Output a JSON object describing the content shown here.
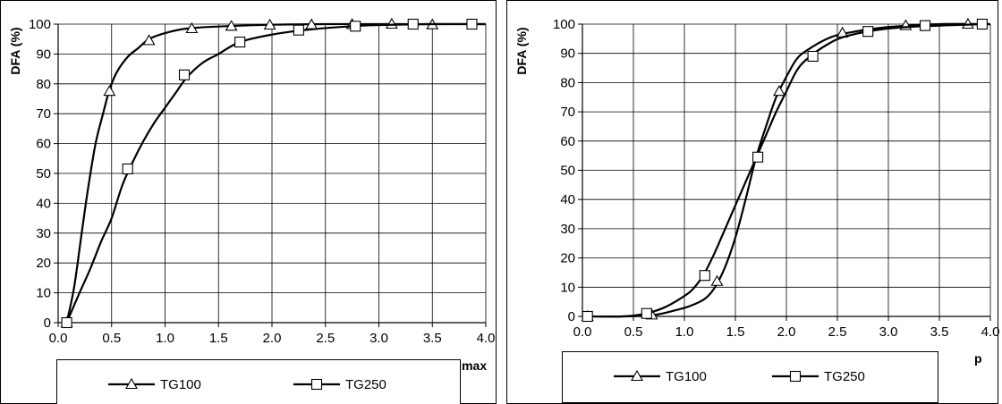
{
  "chart_data": [
    {
      "type": "line",
      "title": "",
      "xlabel": "Hmax",
      "ylabel": "DFA (%)",
      "xlim": [
        0,
        4.0
      ],
      "ylim": [
        0,
        100
      ],
      "x_ticks": [
        "0.0",
        "0.5",
        "1.0",
        "1.5",
        "2.0",
        "2.5",
        "3.0",
        "3.5",
        "4.0"
      ],
      "y_ticks": [
        "0",
        "10",
        "20",
        "30",
        "40",
        "50",
        "60",
        "70",
        "80",
        "90",
        "100"
      ],
      "grid": true,
      "legend_position": "bottom",
      "series": [
        {
          "name": "TG100",
          "marker": "triangle",
          "curve": [
            [
              0.08,
              0
            ],
            [
              0.15,
              12
            ],
            [
              0.22,
              30
            ],
            [
              0.28,
              45
            ],
            [
              0.35,
              60
            ],
            [
              0.42,
              70
            ],
            [
              0.48,
              78
            ],
            [
              0.55,
              84
            ],
            [
              0.65,
              89
            ],
            [
              0.75,
              92
            ],
            [
              0.85,
              95
            ],
            [
              1.0,
              97
            ],
            [
              1.2,
              98.5
            ],
            [
              1.5,
              99.2
            ],
            [
              2.0,
              99.8
            ],
            [
              2.5,
              100
            ],
            [
              3.0,
              100
            ],
            [
              4.0,
              100
            ]
          ],
          "markers": [
            [
              0.08,
              0
            ],
            [
              0.48,
              77.5
            ],
            [
              0.85,
              94.5
            ],
            [
              1.25,
              98.5
            ],
            [
              1.62,
              99.3
            ],
            [
              1.98,
              99.7
            ],
            [
              2.37,
              99.8
            ],
            [
              2.75,
              99.9
            ],
            [
              3.12,
              100
            ],
            [
              3.5,
              99.8
            ]
          ]
        },
        {
          "name": "TG250",
          "marker": "square",
          "curve": [
            [
              0.08,
              0
            ],
            [
              0.2,
              10
            ],
            [
              0.3,
              18
            ],
            [
              0.4,
              27
            ],
            [
              0.5,
              35
            ],
            [
              0.6,
              46
            ],
            [
              0.7,
              54
            ],
            [
              0.8,
              61
            ],
            [
              0.9,
              67
            ],
            [
              1.0,
              72
            ],
            [
              1.1,
              77
            ],
            [
              1.2,
              82
            ],
            [
              1.35,
              87
            ],
            [
              1.5,
              90
            ],
            [
              1.7,
              94
            ],
            [
              2.0,
              96.5
            ],
            [
              2.3,
              98
            ],
            [
              2.7,
              99.2
            ],
            [
              3.0,
              99.7
            ],
            [
              3.5,
              100
            ],
            [
              4.0,
              100
            ]
          ],
          "markers": [
            [
              0.08,
              0
            ],
            [
              0.65,
              51.5
            ],
            [
              1.18,
              83
            ],
            [
              1.7,
              94
            ],
            [
              2.25,
              98
            ],
            [
              2.78,
              99.3
            ],
            [
              3.32,
              100
            ],
            [
              3.87,
              100
            ]
          ]
        }
      ]
    },
    {
      "type": "line",
      "title": "",
      "xlabel": "p",
      "ylabel": "DFA (%)",
      "xlim": [
        0,
        4.0
      ],
      "ylim": [
        0,
        100
      ],
      "x_ticks": [
        "0.0",
        "0.5",
        "1.0",
        "1.5",
        "2.0",
        "2.5",
        "3.0",
        "3.5",
        "4.0"
      ],
      "y_ticks": [
        "0",
        "10",
        "20",
        "30",
        "40",
        "50",
        "60",
        "70",
        "80",
        "90",
        "100"
      ],
      "grid": true,
      "legend_position": "bottom",
      "series": [
        {
          "name": "TG100",
          "marker": "triangle",
          "curve": [
            [
              0.05,
              0
            ],
            [
              0.4,
              0
            ],
            [
              0.7,
              0.5
            ],
            [
              0.9,
              2
            ],
            [
              1.05,
              3.5
            ],
            [
              1.2,
              6
            ],
            [
              1.3,
              10
            ],
            [
              1.4,
              17
            ],
            [
              1.5,
              27
            ],
            [
              1.6,
              40
            ],
            [
              1.7,
              54
            ],
            [
              1.8,
              65
            ],
            [
              1.9,
              75
            ],
            [
              2.0,
              82
            ],
            [
              2.1,
              88
            ],
            [
              2.2,
              91
            ],
            [
              2.4,
              95
            ],
            [
              2.6,
              97
            ],
            [
              3.0,
              99
            ],
            [
              3.5,
              100
            ],
            [
              4.0,
              100
            ]
          ],
          "markers": [
            [
              0.05,
              0
            ],
            [
              0.68,
              0.5
            ],
            [
              1.32,
              12
            ],
            [
              1.93,
              77
            ],
            [
              2.55,
              97
            ],
            [
              3.17,
              99.5
            ],
            [
              3.78,
              100
            ]
          ]
        },
        {
          "name": "TG250",
          "marker": "square",
          "curve": [
            [
              0.05,
              0
            ],
            [
              0.4,
              0
            ],
            [
              0.6,
              0.8
            ],
            [
              0.8,
              3
            ],
            [
              1.0,
              7
            ],
            [
              1.1,
              10
            ],
            [
              1.2,
              15
            ],
            [
              1.3,
              22
            ],
            [
              1.4,
              30
            ],
            [
              1.5,
              38
            ],
            [
              1.6,
              46
            ],
            [
              1.7,
              54
            ],
            [
              1.8,
              62
            ],
            [
              1.9,
              70
            ],
            [
              2.0,
              77
            ],
            [
              2.1,
              84
            ],
            [
              2.2,
              88
            ],
            [
              2.4,
              93
            ],
            [
              2.6,
              96
            ],
            [
              3.0,
              98.5
            ],
            [
              3.5,
              99.5
            ],
            [
              4.0,
              100
            ]
          ],
          "markers": [
            [
              0.05,
              0
            ],
            [
              0.63,
              1
            ],
            [
              1.2,
              14
            ],
            [
              1.72,
              54.5
            ],
            [
              2.26,
              89
            ],
            [
              2.8,
              97.5
            ],
            [
              3.36,
              99.5
            ],
            [
              3.92,
              100
            ]
          ]
        }
      ]
    }
  ]
}
